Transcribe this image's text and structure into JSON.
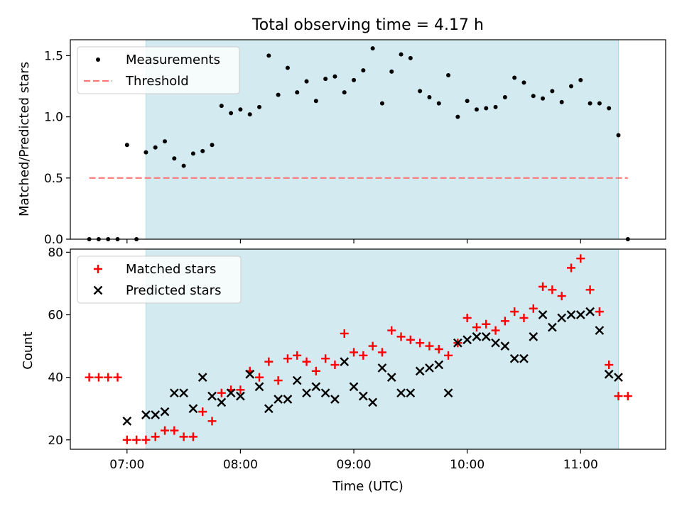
{
  "chart_data": [
    {
      "type": "scatter",
      "title": "Total observing time = 4.17 h",
      "xlabel": "",
      "ylabel": "Matched/Predicted stars",
      "ylim": [
        0,
        1.63
      ],
      "yticks": [
        "0.0",
        "0.5",
        "1.0",
        "1.5"
      ],
      "ytick_values": [
        0,
        0.5,
        1.0,
        1.5
      ],
      "shaded_region_x": [
        "07:10",
        "11:20"
      ],
      "shaded_color": "#d3eaf0",
      "legend": {
        "placement": "upper-left",
        "entries": [
          "Measurements",
          "Threshold"
        ]
      },
      "threshold": {
        "name": "Threshold",
        "y": 0.5,
        "x_range": [
          "06:40",
          "11:25"
        ],
        "color": "#ff7777"
      },
      "series": [
        {
          "name": "Measurements",
          "color": "#000000",
          "marker": "dot",
          "x": [
            "06:40",
            "06:45",
            "06:50",
            "06:55",
            "07:00",
            "07:05",
            "07:10",
            "07:15",
            "07:20",
            "07:25",
            "07:30",
            "07:35",
            "07:40",
            "07:45",
            "07:50",
            "07:55",
            "08:00",
            "08:05",
            "08:10",
            "08:15",
            "08:20",
            "08:25",
            "08:30",
            "08:35",
            "08:40",
            "08:45",
            "08:50",
            "08:55",
            "09:00",
            "09:05",
            "09:10",
            "09:15",
            "09:20",
            "09:25",
            "09:30",
            "09:35",
            "09:40",
            "09:45",
            "09:50",
            "09:55",
            "10:00",
            "10:05",
            "10:10",
            "10:15",
            "10:20",
            "10:25",
            "10:30",
            "10:35",
            "10:40",
            "10:45",
            "10:50",
            "10:55",
            "11:00",
            "11:05",
            "11:10",
            "11:15",
            "11:20",
            "11:25"
          ],
          "y": [
            0.0,
            0.0,
            0.0,
            0.0,
            0.77,
            0.0,
            0.71,
            0.75,
            0.8,
            0.66,
            0.6,
            0.7,
            0.72,
            0.77,
            1.09,
            1.03,
            1.06,
            1.02,
            1.08,
            1.5,
            1.18,
            1.4,
            1.2,
            1.29,
            1.13,
            1.31,
            1.33,
            1.2,
            1.3,
            1.38,
            1.56,
            1.11,
            1.37,
            1.51,
            1.48,
            1.21,
            1.16,
            1.11,
            1.34,
            1.0,
            1.13,
            1.06,
            1.07,
            1.08,
            1.16,
            1.32,
            1.28,
            1.17,
            1.15,
            1.21,
            1.12,
            1.25,
            1.3,
            1.11,
            1.11,
            1.07,
            0.85,
            0.0
          ]
        }
      ]
    },
    {
      "type": "scatter",
      "title": "",
      "xlabel": "Time (UTC)",
      "ylabel": "Count",
      "ylim": [
        17,
        81
      ],
      "yticks": [
        "20",
        "40",
        "60",
        "80"
      ],
      "ytick_values": [
        20,
        40,
        60,
        80
      ],
      "xticks": [
        "07:00",
        "08:00",
        "09:00",
        "10:00",
        "11:00"
      ],
      "xtick_values": [
        "07:00",
        "08:00",
        "09:00",
        "10:00",
        "11:00"
      ],
      "xlim": [
        "06:30",
        "11:45"
      ],
      "shaded_region_x": [
        "07:10",
        "11:20"
      ],
      "shaded_color": "#d3eaf0",
      "legend": {
        "placement": "upper-left",
        "entries": [
          "Matched stars",
          "Predicted stars"
        ]
      },
      "series": [
        {
          "name": "Matched stars",
          "color": "#ff0000",
          "marker": "plus",
          "x": [
            "06:40",
            "06:45",
            "06:50",
            "06:55",
            "07:00",
            "07:05",
            "07:10",
            "07:15",
            "07:20",
            "07:25",
            "07:30",
            "07:35",
            "07:40",
            "07:45",
            "07:50",
            "07:55",
            "08:00",
            "08:05",
            "08:10",
            "08:15",
            "08:20",
            "08:25",
            "08:30",
            "08:35",
            "08:40",
            "08:45",
            "08:50",
            "08:55",
            "09:00",
            "09:05",
            "09:10",
            "09:15",
            "09:20",
            "09:25",
            "09:30",
            "09:35",
            "09:40",
            "09:45",
            "09:50",
            "09:55",
            "10:00",
            "10:05",
            "10:10",
            "10:15",
            "10:20",
            "10:25",
            "10:30",
            "10:35",
            "10:40",
            "10:45",
            "10:50",
            "10:55",
            "11:00",
            "11:05",
            "11:10",
            "11:15",
            "11:20",
            "11:25"
          ],
          "y": [
            40,
            40,
            40,
            40,
            20,
            20,
            20,
            21,
            23,
            23,
            21,
            21,
            29,
            26,
            35,
            36,
            36,
            42,
            40,
            45,
            39,
            46,
            47,
            45,
            42,
            46,
            44,
            54,
            48,
            47,
            50,
            48,
            55,
            53,
            52,
            51,
            50,
            49,
            47,
            51,
            59,
            56,
            57,
            55,
            58,
            61,
            59,
            62,
            69,
            68,
            66,
            75,
            78,
            68,
            61,
            44,
            34,
            34
          ]
        },
        {
          "name": "Predicted stars",
          "color": "#000000",
          "marker": "x",
          "x": [
            "07:00",
            "07:10",
            "07:15",
            "07:20",
            "07:25",
            "07:30",
            "07:35",
            "07:40",
            "07:45",
            "07:50",
            "07:55",
            "08:00",
            "08:05",
            "08:10",
            "08:15",
            "08:20",
            "08:25",
            "08:30",
            "08:35",
            "08:40",
            "08:45",
            "08:50",
            "08:55",
            "09:00",
            "09:05",
            "09:10",
            "09:15",
            "09:20",
            "09:25",
            "09:30",
            "09:35",
            "09:40",
            "09:45",
            "09:50",
            "09:55",
            "10:00",
            "10:05",
            "10:10",
            "10:15",
            "10:20",
            "10:25",
            "10:30",
            "10:35",
            "10:40",
            "10:45",
            "10:50",
            "10:55",
            "11:00",
            "11:05",
            "11:10",
            "11:15",
            "11:20"
          ],
          "y": [
            26,
            28,
            28,
            29,
            35,
            35,
            30,
            40,
            34,
            32,
            35,
            34,
            41,
            37,
            30,
            33,
            33,
            39,
            35,
            37,
            35,
            33,
            45,
            37,
            34,
            32,
            43,
            40,
            35,
            35,
            42,
            43,
            44,
            35,
            51,
            52,
            53,
            53,
            51,
            50,
            46,
            46,
            53,
            60,
            56,
            59,
            60,
            60,
            61,
            55,
            41,
            40
          ]
        }
      ]
    }
  ]
}
